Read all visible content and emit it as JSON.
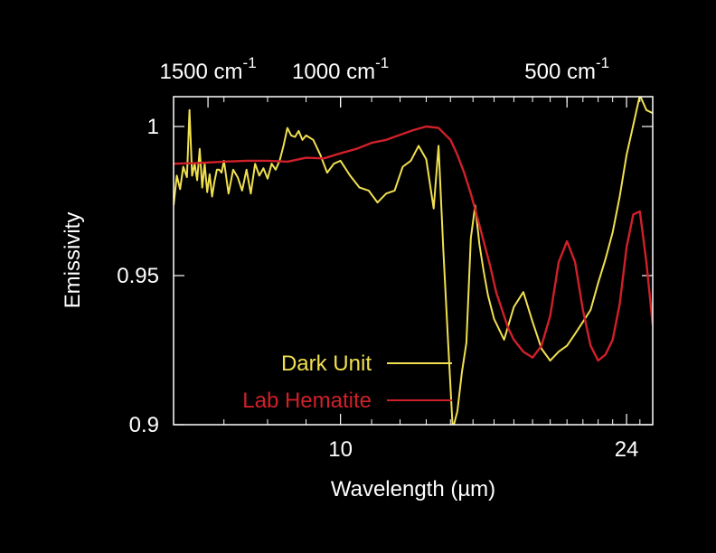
{
  "chart_data": {
    "type": "line",
    "xlabel": "Wavelength (µm)",
    "ylabel": "Emissivity",
    "x_scale": "log",
    "xlim": [
      6.0,
      26.0
    ],
    "ylim": [
      0.9,
      1.01
    ],
    "x_ticks": [
      {
        "value": 10,
        "label": "10"
      },
      {
        "value": 24,
        "label": "24"
      }
    ],
    "x_minor_ticks": [
      7,
      8,
      9,
      11,
      12,
      13,
      14,
      15,
      16,
      17,
      18,
      19,
      20,
      21,
      22,
      23,
      25,
      26
    ],
    "y_ticks": [
      {
        "value": 1.0,
        "label": "1"
      },
      {
        "value": 0.95,
        "label": "0.95"
      },
      {
        "value": 0.9,
        "label": "0.9"
      }
    ],
    "top_axis": {
      "ticks": [
        {
          "wavenumber": 1500,
          "label": "1500 cm",
          "exp": "-1"
        },
        {
          "wavenumber": 1000,
          "label": "1000 cm",
          "exp": "-1"
        },
        {
          "wavenumber": 500,
          "label": "500 cm",
          "exp": "-1"
        }
      ]
    },
    "legend_position": "bottom-left",
    "series": [
      {
        "name": "Dark Unit",
        "color": "#f0e050",
        "x": [
          6.0,
          6.06,
          6.12,
          6.18,
          6.25,
          6.3,
          6.35,
          6.4,
          6.45,
          6.5,
          6.55,
          6.6,
          6.65,
          6.7,
          6.75,
          6.8,
          6.85,
          6.9,
          6.95,
          7.0,
          7.1,
          7.2,
          7.3,
          7.4,
          7.5,
          7.6,
          7.7,
          7.8,
          7.9,
          8.0,
          8.1,
          8.2,
          8.3,
          8.4,
          8.5,
          8.6,
          8.7,
          8.8,
          8.9,
          9.0,
          9.2,
          9.4,
          9.6,
          9.8,
          10.0,
          10.3,
          10.6,
          10.9,
          11.2,
          11.5,
          11.8,
          12.1,
          12.4,
          12.7,
          13.0,
          13.3,
          13.5,
          13.7,
          13.9,
          14.1,
          14.3,
          14.5,
          14.7,
          14.9,
          15.1,
          15.3,
          15.5,
          15.7,
          16.0,
          16.5,
          17.0,
          17.5,
          18.0,
          18.5,
          19.0,
          19.5,
          20.0,
          20.5,
          21.0,
          21.5,
          22.0,
          22.5,
          23.0,
          23.5,
          24.0,
          24.5,
          25.0,
          25.5,
          26.0
        ],
        "y": [
          0.9735,
          0.9835,
          0.979,
          0.9865,
          0.983,
          1.0055,
          0.9835,
          0.9875,
          0.982,
          0.9925,
          0.9795,
          0.9875,
          0.978,
          0.984,
          0.9765,
          0.9815,
          0.9855,
          0.9855,
          0.9845,
          0.9885,
          0.9775,
          0.9855,
          0.983,
          0.9785,
          0.9855,
          0.9775,
          0.9875,
          0.9835,
          0.986,
          0.9825,
          0.9875,
          0.9855,
          0.9885,
          0.9935,
          0.9995,
          0.997,
          0.9965,
          0.9985,
          0.9955,
          0.997,
          0.9955,
          0.9905,
          0.9845,
          0.9875,
          0.9885,
          0.9835,
          0.9795,
          0.9785,
          0.9745,
          0.9775,
          0.9785,
          0.9865,
          0.9885,
          0.9935,
          0.989,
          0.9725,
          0.9935,
          0.9585,
          0.9275,
          0.8985,
          0.9045,
          0.9175,
          0.9275,
          0.9625,
          0.9735,
          0.9605,
          0.9515,
          0.9435,
          0.9355,
          0.9285,
          0.9395,
          0.9445,
          0.9345,
          0.9255,
          0.9215,
          0.9245,
          0.9265,
          0.9305,
          0.9345,
          0.9385,
          0.9475,
          0.9555,
          0.9645,
          0.9765,
          0.9905,
          1.0005,
          1.0105,
          1.0055,
          1.0045
        ]
      },
      {
        "name": "Lab Hematite",
        "color": "#d0202a",
        "x": [
          6.0,
          6.5,
          7.0,
          7.5,
          8.0,
          8.5,
          9.0,
          9.5,
          10.0,
          10.5,
          11.0,
          11.5,
          12.0,
          12.5,
          13.0,
          13.5,
          14.0,
          14.3,
          14.6,
          14.9,
          15.2,
          15.5,
          15.8,
          16.1,
          16.4,
          16.7,
          17.0,
          17.5,
          18.0,
          18.5,
          19.0,
          19.5,
          20.0,
          20.5,
          21.0,
          21.5,
          22.0,
          22.5,
          23.0,
          23.5,
          24.0,
          24.5,
          25.0,
          25.5,
          26.0
        ],
        "y": [
          0.9875,
          0.9878,
          0.9882,
          0.9885,
          0.9885,
          0.9882,
          0.9895,
          0.9893,
          0.991,
          0.9925,
          0.9945,
          0.9955,
          0.9972,
          0.9988,
          1.0,
          0.9995,
          0.9955,
          0.9905,
          0.9845,
          0.9775,
          0.9695,
          0.9615,
          0.9535,
          0.9445,
          0.9385,
          0.9325,
          0.9285,
          0.9245,
          0.9225,
          0.9265,
          0.9365,
          0.9545,
          0.9615,
          0.9545,
          0.9385,
          0.9265,
          0.9215,
          0.9235,
          0.9285,
          0.9405,
          0.9595,
          0.9705,
          0.9715,
          0.9545,
          0.9335
        ]
      }
    ]
  }
}
